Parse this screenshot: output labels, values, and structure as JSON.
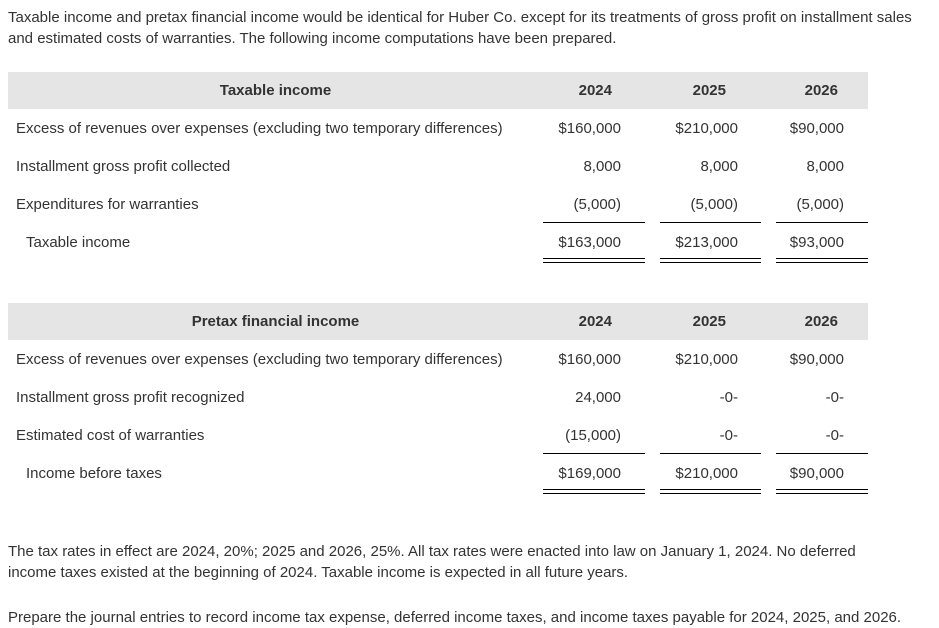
{
  "intro": "Taxable income and pretax financial income would be identical for Huber Co. except for its treatments of gross profit on installment sales and estimated costs of warranties. The following income computations have been prepared.",
  "tables": [
    {
      "title": "Taxable income",
      "years": [
        "2024",
        "2025",
        "2026"
      ],
      "rows": [
        {
          "label": "Excess of revenues over expenses (excluding two temporary differences)",
          "values": [
            "$160,000",
            "$210,000",
            "$90,000"
          ]
        },
        {
          "label": "Installment gross profit collected",
          "values": [
            "8,000",
            "8,000",
            "8,000"
          ]
        },
        {
          "label": "Expenditures for warranties",
          "values": [
            "(5,000)",
            "(5,000)",
            "(5,000)"
          ]
        }
      ],
      "total": {
        "label": "Taxable income",
        "values": [
          "$163,000",
          "$213,000",
          "$93,000"
        ]
      }
    },
    {
      "title": "Pretax financial income",
      "years": [
        "2024",
        "2025",
        "2026"
      ],
      "rows": [
        {
          "label": "Excess of revenues over expenses  (excluding two temporary differences)",
          "values": [
            "$160,000",
            "$210,000",
            "$90,000"
          ]
        },
        {
          "label": "Installment gross profit recognized",
          "values": [
            "24,000",
            "-0-",
            "-0-"
          ]
        },
        {
          "label": "Estimated cost of warranties",
          "values": [
            "(15,000)",
            "-0-",
            "-0-"
          ]
        }
      ],
      "total": {
        "label": "Income before taxes",
        "values": [
          "$169,000",
          "$210,000",
          "$90,000"
        ]
      }
    }
  ],
  "tax_note": "The tax rates in effect are 2024, 20%; 2025 and 2026, 25%. All tax rates were enacted into law on January 1, 2024. No deferred income taxes existed at the beginning of 2024. Taxable income is expected in all future years.",
  "instruction": "Prepare the journal entries to record income tax expense, deferred income taxes, and income taxes payable for 2024, 2025, and 2026."
}
